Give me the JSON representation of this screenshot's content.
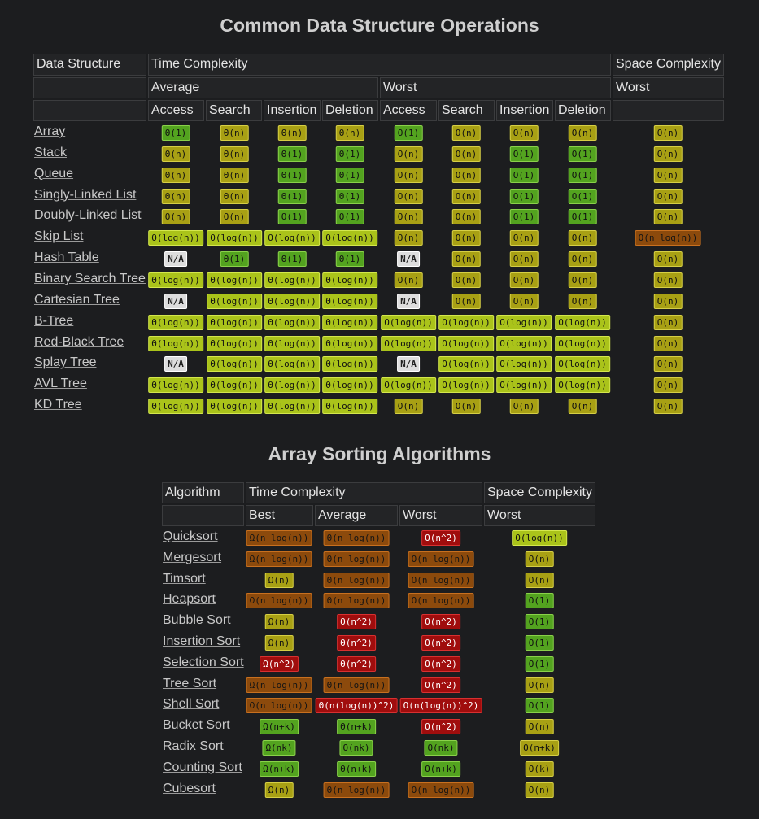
{
  "ds": {
    "title": "Common Data Structure Operations",
    "headers": {
      "data_structure": "Data Structure",
      "time_complexity": "Time Complexity",
      "space_complexity": "Space Complexity",
      "average": "Average",
      "worst": "Worst",
      "space_worst": "Worst",
      "ops": [
        "Access",
        "Search",
        "Insertion",
        "Deletion",
        "Access",
        "Search",
        "Insertion",
        "Deletion"
      ]
    },
    "rows": [
      {
        "name": "Array",
        "cells": [
          [
            "Θ(1)",
            "green"
          ],
          [
            "Θ(n)",
            "yellow"
          ],
          [
            "Θ(n)",
            "yellow"
          ],
          [
            "Θ(n)",
            "yellow"
          ],
          [
            "O(1)",
            "green"
          ],
          [
            "O(n)",
            "yellow"
          ],
          [
            "O(n)",
            "yellow"
          ],
          [
            "O(n)",
            "yellow"
          ],
          [
            "O(n)",
            "yellow"
          ]
        ]
      },
      {
        "name": "Stack",
        "cells": [
          [
            "Θ(n)",
            "yellow"
          ],
          [
            "Θ(n)",
            "yellow"
          ],
          [
            "Θ(1)",
            "green"
          ],
          [
            "Θ(1)",
            "green"
          ],
          [
            "O(n)",
            "yellow"
          ],
          [
            "O(n)",
            "yellow"
          ],
          [
            "O(1)",
            "green"
          ],
          [
            "O(1)",
            "green"
          ],
          [
            "O(n)",
            "yellow"
          ]
        ]
      },
      {
        "name": "Queue",
        "cells": [
          [
            "Θ(n)",
            "yellow"
          ],
          [
            "Θ(n)",
            "yellow"
          ],
          [
            "Θ(1)",
            "green"
          ],
          [
            "Θ(1)",
            "green"
          ],
          [
            "O(n)",
            "yellow"
          ],
          [
            "O(n)",
            "yellow"
          ],
          [
            "O(1)",
            "green"
          ],
          [
            "O(1)",
            "green"
          ],
          [
            "O(n)",
            "yellow"
          ]
        ]
      },
      {
        "name": "Singly-Linked List",
        "cells": [
          [
            "Θ(n)",
            "yellow"
          ],
          [
            "Θ(n)",
            "yellow"
          ],
          [
            "Θ(1)",
            "green"
          ],
          [
            "Θ(1)",
            "green"
          ],
          [
            "O(n)",
            "yellow"
          ],
          [
            "O(n)",
            "yellow"
          ],
          [
            "O(1)",
            "green"
          ],
          [
            "O(1)",
            "green"
          ],
          [
            "O(n)",
            "yellow"
          ]
        ]
      },
      {
        "name": "Doubly-Linked List",
        "cells": [
          [
            "Θ(n)",
            "yellow"
          ],
          [
            "Θ(n)",
            "yellow"
          ],
          [
            "Θ(1)",
            "green"
          ],
          [
            "Θ(1)",
            "green"
          ],
          [
            "O(n)",
            "yellow"
          ],
          [
            "O(n)",
            "yellow"
          ],
          [
            "O(1)",
            "green"
          ],
          [
            "O(1)",
            "green"
          ],
          [
            "O(n)",
            "yellow"
          ]
        ]
      },
      {
        "name": "Skip List",
        "cells": [
          [
            "Θ(log(n))",
            "lime"
          ],
          [
            "Θ(log(n))",
            "lime"
          ],
          [
            "Θ(log(n))",
            "lime"
          ],
          [
            "Θ(log(n))",
            "lime"
          ],
          [
            "O(n)",
            "yellow"
          ],
          [
            "O(n)",
            "yellow"
          ],
          [
            "O(n)",
            "yellow"
          ],
          [
            "O(n)",
            "yellow"
          ],
          [
            "O(n log(n))",
            "orange"
          ]
        ]
      },
      {
        "name": "Hash Table",
        "cells": [
          [
            "N/A",
            "na"
          ],
          [
            "Θ(1)",
            "green"
          ],
          [
            "Θ(1)",
            "green"
          ],
          [
            "Θ(1)",
            "green"
          ],
          [
            "N/A",
            "na"
          ],
          [
            "O(n)",
            "yellow"
          ],
          [
            "O(n)",
            "yellow"
          ],
          [
            "O(n)",
            "yellow"
          ],
          [
            "O(n)",
            "yellow"
          ]
        ]
      },
      {
        "name": "Binary Search Tree",
        "cells": [
          [
            "Θ(log(n))",
            "lime"
          ],
          [
            "Θ(log(n))",
            "lime"
          ],
          [
            "Θ(log(n))",
            "lime"
          ],
          [
            "Θ(log(n))",
            "lime"
          ],
          [
            "O(n)",
            "yellow"
          ],
          [
            "O(n)",
            "yellow"
          ],
          [
            "O(n)",
            "yellow"
          ],
          [
            "O(n)",
            "yellow"
          ],
          [
            "O(n)",
            "yellow"
          ]
        ]
      },
      {
        "name": "Cartesian Tree",
        "cells": [
          [
            "N/A",
            "na"
          ],
          [
            "Θ(log(n))",
            "lime"
          ],
          [
            "Θ(log(n))",
            "lime"
          ],
          [
            "Θ(log(n))",
            "lime"
          ],
          [
            "N/A",
            "na"
          ],
          [
            "O(n)",
            "yellow"
          ],
          [
            "O(n)",
            "yellow"
          ],
          [
            "O(n)",
            "yellow"
          ],
          [
            "O(n)",
            "yellow"
          ]
        ]
      },
      {
        "name": "B-Tree",
        "cells": [
          [
            "Θ(log(n))",
            "lime"
          ],
          [
            "Θ(log(n))",
            "lime"
          ],
          [
            "Θ(log(n))",
            "lime"
          ],
          [
            "Θ(log(n))",
            "lime"
          ],
          [
            "O(log(n))",
            "lime"
          ],
          [
            "O(log(n))",
            "lime"
          ],
          [
            "O(log(n))",
            "lime"
          ],
          [
            "O(log(n))",
            "lime"
          ],
          [
            "O(n)",
            "yellow"
          ]
        ]
      },
      {
        "name": "Red-Black Tree",
        "cells": [
          [
            "Θ(log(n))",
            "lime"
          ],
          [
            "Θ(log(n))",
            "lime"
          ],
          [
            "Θ(log(n))",
            "lime"
          ],
          [
            "Θ(log(n))",
            "lime"
          ],
          [
            "O(log(n))",
            "lime"
          ],
          [
            "O(log(n))",
            "lime"
          ],
          [
            "O(log(n))",
            "lime"
          ],
          [
            "O(log(n))",
            "lime"
          ],
          [
            "O(n)",
            "yellow"
          ]
        ]
      },
      {
        "name": "Splay Tree",
        "cells": [
          [
            "N/A",
            "na"
          ],
          [
            "Θ(log(n))",
            "lime"
          ],
          [
            "Θ(log(n))",
            "lime"
          ],
          [
            "Θ(log(n))",
            "lime"
          ],
          [
            "N/A",
            "na"
          ],
          [
            "O(log(n))",
            "lime"
          ],
          [
            "O(log(n))",
            "lime"
          ],
          [
            "O(log(n))",
            "lime"
          ],
          [
            "O(n)",
            "yellow"
          ]
        ]
      },
      {
        "name": "AVL Tree",
        "cells": [
          [
            "Θ(log(n))",
            "lime"
          ],
          [
            "Θ(log(n))",
            "lime"
          ],
          [
            "Θ(log(n))",
            "lime"
          ],
          [
            "Θ(log(n))",
            "lime"
          ],
          [
            "O(log(n))",
            "lime"
          ],
          [
            "O(log(n))",
            "lime"
          ],
          [
            "O(log(n))",
            "lime"
          ],
          [
            "O(log(n))",
            "lime"
          ],
          [
            "O(n)",
            "yellow"
          ]
        ]
      },
      {
        "name": "KD Tree",
        "cells": [
          [
            "Θ(log(n))",
            "lime"
          ],
          [
            "Θ(log(n))",
            "lime"
          ],
          [
            "Θ(log(n))",
            "lime"
          ],
          [
            "Θ(log(n))",
            "lime"
          ],
          [
            "O(n)",
            "yellow"
          ],
          [
            "O(n)",
            "yellow"
          ],
          [
            "O(n)",
            "yellow"
          ],
          [
            "O(n)",
            "yellow"
          ],
          [
            "O(n)",
            "yellow"
          ]
        ]
      }
    ]
  },
  "sort": {
    "title": "Array Sorting Algorithms",
    "headers": {
      "algorithm": "Algorithm",
      "time_complexity": "Time Complexity",
      "space_complexity": "Space Complexity",
      "best": "Best",
      "average": "Average",
      "worst": "Worst",
      "space_worst": "Worst"
    },
    "rows": [
      {
        "name": "Quicksort",
        "cells": [
          [
            "Ω(n log(n))",
            "orange"
          ],
          [
            "Θ(n log(n))",
            "orange"
          ],
          [
            "O(n^2)",
            "red"
          ],
          [
            "O(log(n))",
            "lime"
          ]
        ]
      },
      {
        "name": "Mergesort",
        "cells": [
          [
            "Ω(n log(n))",
            "orange"
          ],
          [
            "Θ(n log(n))",
            "orange"
          ],
          [
            "O(n log(n))",
            "orange"
          ],
          [
            "O(n)",
            "yellow"
          ]
        ]
      },
      {
        "name": "Timsort",
        "cells": [
          [
            "Ω(n)",
            "yellow"
          ],
          [
            "Θ(n log(n))",
            "orange"
          ],
          [
            "O(n log(n))",
            "orange"
          ],
          [
            "O(n)",
            "yellow"
          ]
        ]
      },
      {
        "name": "Heapsort",
        "cells": [
          [
            "Ω(n log(n))",
            "orange"
          ],
          [
            "Θ(n log(n))",
            "orange"
          ],
          [
            "O(n log(n))",
            "orange"
          ],
          [
            "O(1)",
            "green"
          ]
        ]
      },
      {
        "name": "Bubble Sort",
        "cells": [
          [
            "Ω(n)",
            "yellow"
          ],
          [
            "Θ(n^2)",
            "red"
          ],
          [
            "O(n^2)",
            "red"
          ],
          [
            "O(1)",
            "green"
          ]
        ]
      },
      {
        "name": "Insertion Sort",
        "cells": [
          [
            "Ω(n)",
            "yellow"
          ],
          [
            "Θ(n^2)",
            "red"
          ],
          [
            "O(n^2)",
            "red"
          ],
          [
            "O(1)",
            "green"
          ]
        ]
      },
      {
        "name": "Selection Sort",
        "cells": [
          [
            "Ω(n^2)",
            "red"
          ],
          [
            "Θ(n^2)",
            "red"
          ],
          [
            "O(n^2)",
            "red"
          ],
          [
            "O(1)",
            "green"
          ]
        ]
      },
      {
        "name": "Tree Sort",
        "cells": [
          [
            "Ω(n log(n))",
            "orange"
          ],
          [
            "Θ(n log(n))",
            "orange"
          ],
          [
            "O(n^2)",
            "red"
          ],
          [
            "O(n)",
            "yellow"
          ]
        ]
      },
      {
        "name": "Shell Sort",
        "cells": [
          [
            "Ω(n log(n))",
            "orange"
          ],
          [
            "Θ(n(log(n))^2)",
            "red"
          ],
          [
            "O(n(log(n))^2)",
            "red"
          ],
          [
            "O(1)",
            "green"
          ]
        ]
      },
      {
        "name": "Bucket Sort",
        "cells": [
          [
            "Ω(n+k)",
            "green"
          ],
          [
            "Θ(n+k)",
            "green"
          ],
          [
            "O(n^2)",
            "red"
          ],
          [
            "O(n)",
            "yellow"
          ]
        ]
      },
      {
        "name": "Radix Sort",
        "cells": [
          [
            "Ω(nk)",
            "green"
          ],
          [
            "Θ(nk)",
            "green"
          ],
          [
            "O(nk)",
            "green"
          ],
          [
            "O(n+k)",
            "yellow"
          ]
        ]
      },
      {
        "name": "Counting Sort",
        "cells": [
          [
            "Ω(n+k)",
            "green"
          ],
          [
            "Θ(n+k)",
            "green"
          ],
          [
            "O(n+k)",
            "green"
          ],
          [
            "O(k)",
            "yellow"
          ]
        ]
      },
      {
        "name": "Cubesort",
        "cells": [
          [
            "Ω(n)",
            "yellow"
          ],
          [
            "Θ(n log(n))",
            "orange"
          ],
          [
            "O(n log(n))",
            "orange"
          ],
          [
            "O(n)",
            "yellow"
          ]
        ]
      }
    ]
  }
}
